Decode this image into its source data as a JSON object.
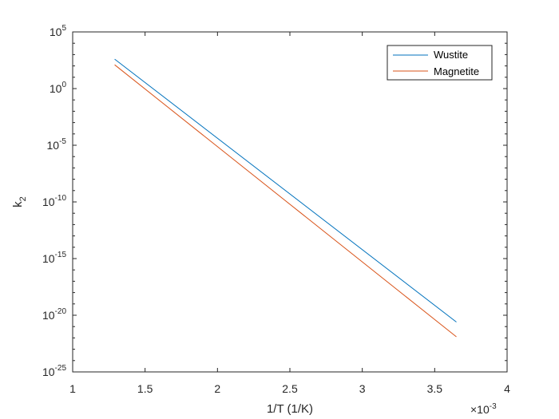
{
  "chart_data": {
    "type": "line",
    "xlabel": "1/T (1/K)",
    "ylabel_base": "k",
    "ylabel_sub": "2",
    "x_exponent_label": "×10",
    "x_exponent": "-3",
    "xlim": [
      1,
      4
    ],
    "ylim_exp": [
      -25,
      5
    ],
    "yscale": "log",
    "x_ticks": [
      1,
      1.5,
      2,
      2.5,
      3,
      3.5,
      4
    ],
    "x_tick_labels": [
      "1",
      "1.5",
      "2",
      "2.5",
      "3",
      "3.5",
      "4"
    ],
    "y_ticks_exp": [
      -25,
      -20,
      -15,
      -10,
      -5,
      0,
      5
    ],
    "y_tick_labels": [
      {
        "base": "10",
        "exp": "-25"
      },
      {
        "base": "10",
        "exp": "-20"
      },
      {
        "base": "10",
        "exp": "-15"
      },
      {
        "base": "10",
        "exp": "-10"
      },
      {
        "base": "10",
        "exp": "-5"
      },
      {
        "base": "10",
        "exp": "0"
      },
      {
        "base": "10",
        "exp": "5"
      }
    ],
    "grid": false,
    "legend_position": "top-right",
    "series": [
      {
        "name": "Wustite",
        "color": "#0072BD",
        "x": [
          1.29,
          3.65
        ],
        "y_log10": [
          2.6,
          -20.6
        ]
      },
      {
        "name": "Magnetite",
        "color": "#D95319",
        "x": [
          1.29,
          3.65
        ],
        "y_log10": [
          2.1,
          -21.9
        ]
      }
    ]
  }
}
